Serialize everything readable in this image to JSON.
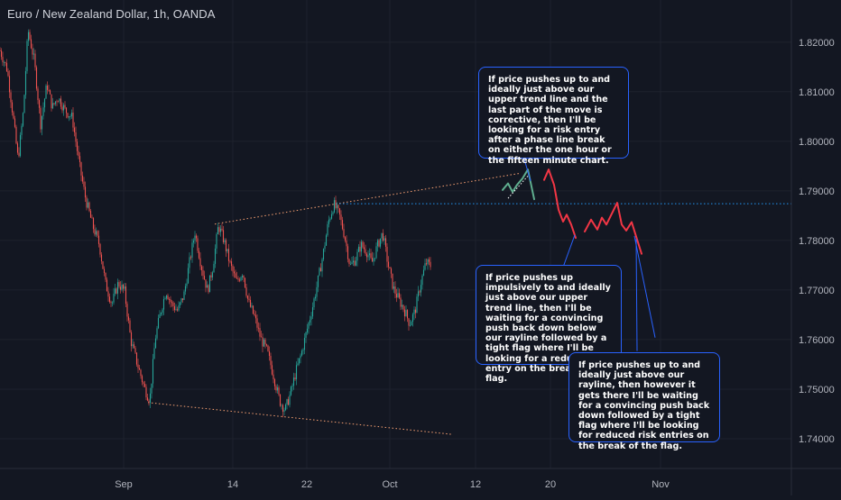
{
  "header": {
    "title": "Euro / New Zealand Dollar, 1h, OANDA"
  },
  "colors": {
    "background": "#131722",
    "grid": "#1e222d",
    "axis_text": "#b2b5be",
    "candle_up": "#26a69a",
    "candle_down": "#ef5350",
    "projection": "#f23645",
    "projection_alt": "#5fae8f",
    "trendline": "#f7a072",
    "rayline": "#2196f3",
    "note_border": "#2962ff"
  },
  "notes": {
    "top": "If price pushes up to and ideally just above our upper trend line and the last part of the move is corrective,  then I'll be looking for a risk entry after a phase line break on either the one hour or the fifteen minute chart.",
    "middle": "If price pushes up impulsively to and ideally just above our upper trend line, then I'll be waiting for a convincing push back down below our rayline followed by a tight flag where I'll be looking for a reduced risk entry on the break of the flag.",
    "bottom": "If price pushes up to and ideally just above our rayline, then however it gets there I'll be waiting for a convincing push back down followed by a tight flag where I'll be looking for reduced risk entries on the break of the flag."
  },
  "chart_data": {
    "type": "candlestick",
    "symbol": "EURNZD",
    "timeframe": "1h",
    "source": "OANDA",
    "ylim": [
      1.734,
      1.8285
    ],
    "y_ticks": [
      "1.82000",
      "1.81000",
      "1.80000",
      "1.79000",
      "1.78000",
      "1.77000",
      "1.76000",
      "1.75000",
      "1.74000"
    ],
    "x_ticks": [
      "Sep",
      "14",
      "22",
      "Oct",
      "12",
      "20",
      "Nov"
    ],
    "price_path": [
      [
        0,
        1.8183
      ],
      [
        8,
        1.8145
      ],
      [
        14,
        1.8058
      ],
      [
        20,
        1.7963
      ],
      [
        26,
        1.8062
      ],
      [
        31,
        1.8225
      ],
      [
        38,
        1.8162
      ],
      [
        45,
        1.8035
      ],
      [
        52,
        1.8115
      ],
      [
        58,
        1.8068
      ],
      [
        64,
        1.809
      ],
      [
        72,
        1.8063
      ],
      [
        80,
        1.8048
      ],
      [
        88,
        1.7952
      ],
      [
        95,
        1.7883
      ],
      [
        103,
        1.7828
      ],
      [
        110,
        1.7792
      ],
      [
        117,
        1.7712
      ],
      [
        124,
        1.7672
      ],
      [
        131,
        1.7714
      ],
      [
        138,
        1.7697
      ],
      [
        145,
        1.7598
      ],
      [
        152,
        1.7552
      ],
      [
        160,
        1.7503
      ],
      [
        166,
        1.7477
      ],
      [
        172,
        1.7602
      ],
      [
        178,
        1.7656
      ],
      [
        184,
        1.7699
      ],
      [
        190,
        1.7672
      ],
      [
        197,
        1.7658
      ],
      [
        204,
        1.7692
      ],
      [
        210,
        1.7756
      ],
      [
        216,
        1.7817
      ],
      [
        223,
        1.7749
      ],
      [
        230,
        1.7698
      ],
      [
        236,
        1.7748
      ],
      [
        242,
        1.783
      ],
      [
        248,
        1.7801
      ],
      [
        255,
        1.7752
      ],
      [
        262,
        1.7715
      ],
      [
        269,
        1.7738
      ],
      [
        275,
        1.7677
      ],
      [
        282,
        1.7646
      ],
      [
        289,
        1.7602
      ],
      [
        296,
        1.7577
      ],
      [
        303,
        1.7528
      ],
      [
        310,
        1.7476
      ],
      [
        316,
        1.7458
      ],
      [
        322,
        1.7492
      ],
      [
        328,
        1.7536
      ],
      [
        334,
        1.7572
      ],
      [
        340,
        1.7618
      ],
      [
        346,
        1.7663
      ],
      [
        352,
        1.7715
      ],
      [
        358,
        1.7772
      ],
      [
        364,
        1.7838
      ],
      [
        370,
        1.7873
      ],
      [
        376,
        1.7852
      ],
      [
        382,
        1.7808
      ],
      [
        388,
        1.7748
      ],
      [
        394,
        1.7762
      ],
      [
        400,
        1.7791
      ],
      [
        406,
        1.7779
      ],
      [
        412,
        1.7754
      ],
      [
        418,
        1.7788
      ],
      [
        424,
        1.7815
      ],
      [
        430,
        1.7752
      ],
      [
        436,
        1.7703
      ],
      [
        442,
        1.7681
      ],
      [
        448,
        1.766
      ],
      [
        454,
        1.7632
      ],
      [
        460,
        1.7658
      ],
      [
        466,
        1.7712
      ],
      [
        472,
        1.7755
      ],
      [
        478,
        1.7748
      ]
    ],
    "trendlines": [
      {
        "name": "upper",
        "from": [
          238,
          1.7833
        ],
        "to": [
          575,
          1.7935
        ],
        "color": "#f7a072",
        "style": "dotted"
      },
      {
        "name": "lower",
        "from": [
          164,
          1.7473
        ],
        "to": [
          500,
          1.7409
        ],
        "color": "#f7a072",
        "style": "dotted"
      },
      {
        "name": "rayline",
        "from": [
          372,
          1.7874
        ],
        "to": [
          880,
          1.7874
        ],
        "color": "#2196f3",
        "style": "dotted"
      }
    ],
    "projections": [
      {
        "name": "path-a-green",
        "color": "#5fae8f",
        "points": [
          [
            557,
            1.7902
          ],
          [
            563,
            1.7915
          ],
          [
            568,
            1.7898
          ],
          [
            573,
            1.7912
          ],
          [
            579,
            1.7925
          ],
          [
            585,
            1.7943
          ],
          [
            592,
            1.7883
          ]
        ]
      },
      {
        "name": "path-b",
        "color": "#f23645",
        "points": [
          [
            603,
            1.7922
          ],
          [
            608,
            1.7943
          ],
          [
            614,
            1.7912
          ],
          [
            619,
            1.7862
          ],
          [
            624,
            1.7838
          ],
          [
            628,
            1.7852
          ],
          [
            633,
            1.7832
          ],
          [
            638,
            1.7805
          ]
        ]
      },
      {
        "name": "path-c",
        "color": "#f23645",
        "points": [
          [
            648,
            1.7818
          ],
          [
            655,
            1.7842
          ],
          [
            662,
            1.7822
          ],
          [
            667,
            1.7846
          ],
          [
            672,
            1.7832
          ],
          [
            678,
            1.7854
          ],
          [
            684,
            1.7876
          ],
          [
            689,
            1.7832
          ],
          [
            694,
            1.782
          ],
          [
            700,
            1.7837
          ],
          [
            706,
            1.7802
          ],
          [
            711,
            1.7773
          ]
        ]
      }
    ],
    "pointers": [
      {
        "from": [
          575,
          1.8002
        ],
        "to": [
          588,
          1.792
        ]
      },
      {
        "from": [
          605,
          1.7651
        ],
        "to": [
          637,
          1.7811
        ]
      },
      {
        "from": [
          706,
          1.7577
        ],
        "to": [
          705,
          1.7803
        ]
      },
      {
        "from": [
          726,
          1.7604
        ],
        "to": [
          703,
          1.7809
        ]
      }
    ]
  }
}
